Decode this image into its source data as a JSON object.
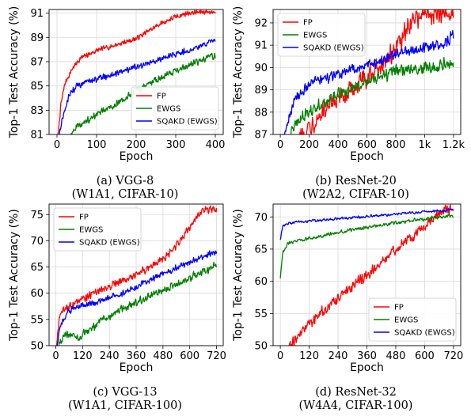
{
  "chart_data": [
    {
      "id": "a",
      "type": "line",
      "xlabel": "Epoch",
      "ylabel": "Top-1 Test Accuracy (%)",
      "xlim": [
        -20,
        420
      ],
      "ylim": [
        81,
        91.3
      ],
      "xticks": [
        0,
        100,
        200,
        300,
        400
      ],
      "xtick_labels": [
        "0",
        "100",
        "200",
        "300",
        "400"
      ],
      "yticks": [
        81,
        83,
        85,
        87,
        89,
        91
      ],
      "ytick_labels": [
        "81",
        "83",
        "85",
        "87",
        "89",
        "91"
      ],
      "grid": true,
      "legend_position": "lower-right",
      "caption": [
        "(a) VGG-8",
        "(W1A1, CIFAR-10)"
      ],
      "series": [
        {
          "name": "FP",
          "color": "#ff0000",
          "x_max": 400,
          "noise": 0.25,
          "points": [
            [
              0,
              80
            ],
            [
              10,
              83.5
            ],
            [
              20,
              85.2
            ],
            [
              40,
              86.5
            ],
            [
              60,
              87.3
            ],
            [
              100,
              87.9
            ],
            [
              150,
              88.4
            ],
            [
              200,
              88.9
            ],
            [
              230,
              89.5
            ],
            [
              260,
              90.1
            ],
            [
              300,
              90.7
            ],
            [
              330,
              91.0
            ],
            [
              370,
              91.1
            ],
            [
              400,
              91.1
            ]
          ]
        },
        {
          "name": "EWGS",
          "color": "#008000",
          "x_max": 400,
          "noise": 0.35,
          "points": [
            [
              0,
              78
            ],
            [
              20,
              80
            ],
            [
              40,
              81.4
            ],
            [
              70,
              82.0
            ],
            [
              100,
              82.6
            ],
            [
              150,
              83.5
            ],
            [
              200,
              84.6
            ],
            [
              250,
              85.5
            ],
            [
              300,
              86.3
            ],
            [
              350,
              86.9
            ],
            [
              400,
              87.5
            ]
          ]
        },
        {
          "name": "SQAKD (EWGS)",
          "color": "#0000ff",
          "x_max": 400,
          "noise": 0.3,
          "points": [
            [
              0,
              80
            ],
            [
              15,
              82.5
            ],
            [
              30,
              84.2
            ],
            [
              50,
              85.0
            ],
            [
              100,
              85.6
            ],
            [
              150,
              86.0
            ],
            [
              200,
              86.6
            ],
            [
              250,
              87.1
            ],
            [
              300,
              87.6
            ],
            [
              350,
              88.1
            ],
            [
              400,
              88.8
            ]
          ]
        }
      ]
    },
    {
      "id": "b",
      "type": "line",
      "xlabel": "Epoch",
      "ylabel": "Top-1 Test Accuracy (%)",
      "xlim": [
        -50,
        1250
      ],
      "ylim": [
        87,
        92.6
      ],
      "xticks": [
        0,
        200,
        400,
        600,
        800,
        1000,
        1200
      ],
      "xtick_labels": [
        "0",
        "200",
        "400",
        "600",
        "800",
        "1k",
        "1.2k"
      ],
      "yticks": [
        87,
        88,
        89,
        90,
        91,
        92
      ],
      "ytick_labels": [
        "87",
        "88",
        "89",
        "90",
        "91",
        "92"
      ],
      "grid": true,
      "legend_position": "upper-left",
      "caption": [
        "(b) ResNet-20",
        "(W2A2, CIFAR-10)"
      ],
      "series": [
        {
          "name": "FP",
          "color": "#ff0000",
          "x_max": 1200,
          "noise": 0.55,
          "points": [
            [
              0,
              85
            ],
            [
              100,
              86.5
            ],
            [
              200,
              87.4
            ],
            [
              300,
              88.0
            ],
            [
              400,
              88.5
            ],
            [
              500,
              89.0
            ],
            [
              600,
              89.6
            ],
            [
              700,
              90.2
            ],
            [
              800,
              90.8
            ],
            [
              870,
              91.6
            ],
            [
              930,
              92.2
            ],
            [
              1000,
              92.4
            ],
            [
              1100,
              92.4
            ],
            [
              1200,
              92.45
            ]
          ]
        },
        {
          "name": "EWGS",
          "color": "#008000",
          "x_max": 1200,
          "noise": 0.35,
          "points": [
            [
              0,
              85.5
            ],
            [
              100,
              87.5
            ],
            [
              200,
              88.0
            ],
            [
              300,
              88.4
            ],
            [
              400,
              88.8
            ],
            [
              500,
              89.1
            ],
            [
              600,
              89.4
            ],
            [
              700,
              89.6
            ],
            [
              800,
              89.8
            ],
            [
              1000,
              90.0
            ],
            [
              1200,
              90.2
            ]
          ]
        },
        {
          "name": "SQAKD (EWGS)",
          "color": "#0000ff",
          "x_max": 1200,
          "noise": 0.3,
          "points": [
            [
              0,
              86.5
            ],
            [
              100,
              88.6
            ],
            [
              200,
              89.2
            ],
            [
              300,
              89.5
            ],
            [
              400,
              89.7
            ],
            [
              500,
              89.9
            ],
            [
              600,
              90.1
            ],
            [
              700,
              90.3
            ],
            [
              800,
              90.6
            ],
            [
              1000,
              90.9
            ],
            [
              1150,
              91.1
            ],
            [
              1200,
              91.5
            ]
          ]
        }
      ]
    },
    {
      "id": "c",
      "type": "line",
      "xlabel": "Epoch",
      "ylabel": "Top-1 Test Accuracy (%)",
      "xlim": [
        -30,
        750
      ],
      "ylim": [
        50,
        77
      ],
      "xticks": [
        0,
        120,
        240,
        360,
        480,
        600,
        720
      ],
      "xtick_labels": [
        "0",
        "120",
        "240",
        "360",
        "480",
        "600",
        "720"
      ],
      "yticks": [
        50,
        55,
        60,
        65,
        70,
        75
      ],
      "ytick_labels": [
        "50",
        "55",
        "60",
        "65",
        "70",
        "75"
      ],
      "grid": true,
      "legend_position": "upper-left",
      "caption": [
        "(c) VGG-13",
        "(W1A1, CIFAR-100)"
      ],
      "series": [
        {
          "name": "FP",
          "color": "#ff0000",
          "x_max": 720,
          "noise": 0.9,
          "points": [
            [
              0,
              48
            ],
            [
              15,
              55
            ],
            [
              40,
              57
            ],
            [
              100,
              58.5
            ],
            [
              200,
              60.5
            ],
            [
              300,
              62.5
            ],
            [
              400,
              64.5
            ],
            [
              480,
              66.5
            ],
            [
              540,
              69
            ],
            [
              600,
              72.5
            ],
            [
              650,
              75.5
            ],
            [
              690,
              76
            ],
            [
              720,
              76
            ]
          ]
        },
        {
          "name": "EWGS",
          "color": "#008000",
          "x_max": 720,
          "noise": 0.9,
          "points": [
            [
              0,
              48
            ],
            [
              20,
              51
            ],
            [
              50,
              52
            ],
            [
              100,
              51.5
            ],
            [
              150,
              53
            ],
            [
              200,
              54.5
            ],
            [
              300,
              57
            ],
            [
              400,
              59
            ],
            [
              500,
              61
            ],
            [
              600,
              63
            ],
            [
              720,
              65.3
            ]
          ]
        },
        {
          "name": "SQAKD (EWGS)",
          "color": "#0000ff",
          "x_max": 720,
          "noise": 0.7,
          "points": [
            [
              0,
              48
            ],
            [
              20,
              54
            ],
            [
              60,
              56.5
            ],
            [
              100,
              57.5
            ],
            [
              200,
              58.5
            ],
            [
              300,
              60
            ],
            [
              400,
              62
            ],
            [
              500,
              64
            ],
            [
              600,
              66
            ],
            [
              720,
              68
            ]
          ]
        }
      ]
    },
    {
      "id": "d",
      "type": "line",
      "xlabel": "Epoch",
      "ylabel": "Top-1 Test Accuracy (%)",
      "xlim": [
        -30,
        750
      ],
      "ylim": [
        50,
        72
      ],
      "xticks": [
        0,
        120,
        240,
        360,
        480,
        600,
        720
      ],
      "xtick_labels": [
        "0",
        "120",
        "240",
        "360",
        "480",
        "600",
        "720"
      ],
      "yticks": [
        50,
        55,
        60,
        65,
        70
      ],
      "ytick_labels": [
        "50",
        "55",
        "60",
        "65",
        "70"
      ],
      "grid": true,
      "legend_position": "lower-right",
      "caption": [
        "(d) ResNet-32",
        "(W4A4, CIFAR-100)"
      ],
      "series": [
        {
          "name": "FP",
          "color": "#ff0000",
          "x_max": 720,
          "noise": 1.0,
          "points": [
            [
              30,
              49.5
            ],
            [
              60,
              51
            ],
            [
              120,
              53.5
            ],
            [
              240,
              57.5
            ],
            [
              360,
              61
            ],
            [
              480,
              65
            ],
            [
              600,
              68.5
            ],
            [
              680,
              71
            ],
            [
              720,
              71.3
            ]
          ]
        },
        {
          "name": "EWGS",
          "color": "#008000",
          "x_max": 720,
          "noise": 0.35,
          "points": [
            [
              0,
              60.5
            ],
            [
              10,
              64.5
            ],
            [
              30,
              65.8
            ],
            [
              100,
              66.5
            ],
            [
              200,
              67.3
            ],
            [
              300,
              68
            ],
            [
              400,
              68.6
            ],
            [
              500,
              69.2
            ],
            [
              600,
              69.7
            ],
            [
              720,
              70.2
            ]
          ]
        },
        {
          "name": "SQAKD (EWGS)",
          "color": "#0000ff",
          "x_max": 720,
          "noise": 0.25,
          "points": [
            [
              0,
              66.5
            ],
            [
              10,
              68.5
            ],
            [
              30,
              69
            ],
            [
              100,
              69.3
            ],
            [
              200,
              69.6
            ],
            [
              300,
              69.9
            ],
            [
              400,
              70.2
            ],
            [
              500,
              70.5
            ],
            [
              600,
              70.8
            ],
            [
              720,
              71.1
            ]
          ]
        }
      ]
    }
  ]
}
